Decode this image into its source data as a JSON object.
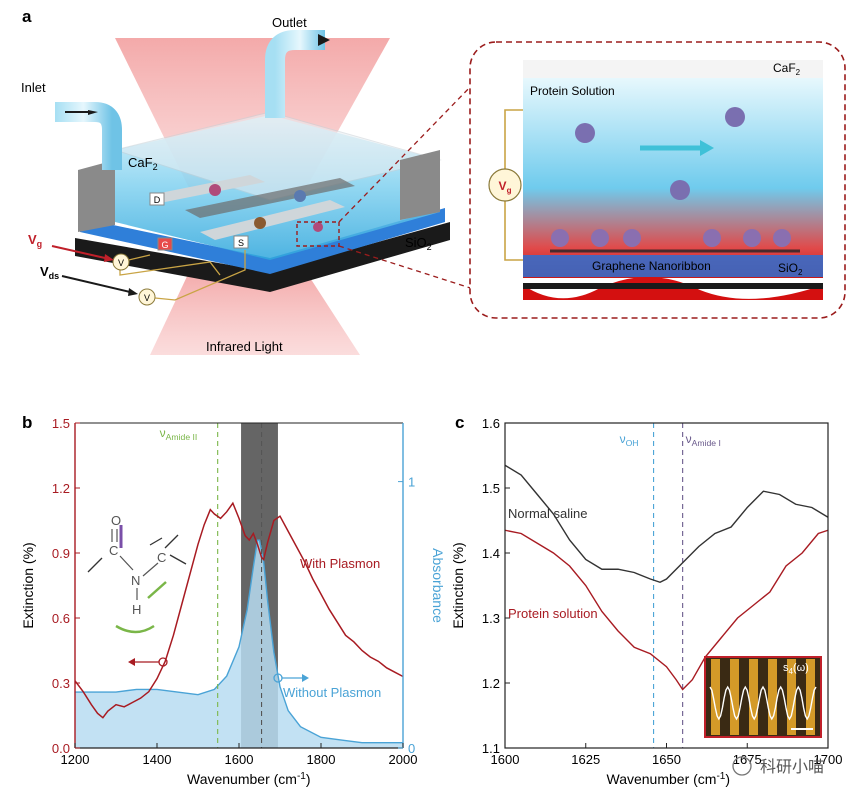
{
  "panel_a": {
    "letter": "a",
    "labels": {
      "outlet": "Outlet",
      "inlet": "Inlet",
      "caf2_left": "CaF",
      "caf2_left_sub": "2",
      "d": "D",
      "g": "G",
      "s": "S",
      "vg": "V",
      "vg_sub": "g",
      "vds": "V",
      "vds_sub": "ds",
      "v1": "V",
      "v2": "V",
      "sio2_left": "SiO",
      "sio2_left_sub": "2",
      "infrared": "Infrared Light"
    },
    "inset": {
      "caf2": "CaF",
      "caf2_sub": "2",
      "protein_solution": "Protein Solution",
      "vg": "V",
      "vg_sub": "g",
      "graphene": "Graphene Nanoribbon",
      "sio2": "SiO",
      "sio2_sub": "2"
    }
  },
  "chart_data": [
    {
      "panel": "b",
      "type": "line",
      "xlabel": "Wavenumber (cm",
      "xlabel_sup": "-1",
      "xlabel_end": ")",
      "ylabel": "Extinction (%)",
      "y2label": "Absorbance",
      "xlim": [
        1200,
        2000
      ],
      "ylim": [
        0,
        1.5
      ],
      "y2lim": [
        0,
        1.22
      ],
      "x_ticks": [
        "1200",
        "1400",
        "1600",
        "1800",
        "2000"
      ],
      "y_ticks": [
        "0.0",
        "0.3",
        "0.6",
        "0.9",
        "1.2",
        "1.5"
      ],
      "y2_ticks": [
        "0",
        "1"
      ],
      "vlines": [
        {
          "x": 1548,
          "label": "ν",
          "label_sub": "Amide II",
          "color": "#7ab648"
        },
        {
          "x": 1655,
          "label": "",
          "color": "#555555"
        }
      ],
      "band": [
        1605,
        1695
      ],
      "annotations": {
        "with_plasmon": "With Plasmon",
        "without_plasmon": "Without Plasmon"
      },
      "molecule": {
        "o": "O",
        "c1": "C",
        "n": "N",
        "c2": "C",
        "h": "H"
      },
      "series": [
        {
          "name": "With Plasmon",
          "color": "#a81b22",
          "axis": "left",
          "x": [
            1200,
            1220,
            1240,
            1255,
            1268,
            1280,
            1300,
            1320,
            1340,
            1360,
            1380,
            1400,
            1420,
            1440,
            1460,
            1480,
            1500,
            1515,
            1530,
            1540,
            1555,
            1570,
            1585,
            1600,
            1615,
            1625,
            1635,
            1645,
            1655,
            1660,
            1670,
            1685,
            1700,
            1720,
            1740,
            1760,
            1780,
            1800,
            1820,
            1840,
            1860,
            1880,
            1900,
            1920,
            1940,
            1960,
            1980,
            2000
          ],
          "y": [
            0.31,
            0.26,
            0.2,
            0.16,
            0.14,
            0.17,
            0.2,
            0.19,
            0.21,
            0.23,
            0.26,
            0.32,
            0.4,
            0.52,
            0.66,
            0.8,
            0.94,
            1.03,
            1.1,
            1.08,
            1.06,
            1.09,
            1.13,
            1.06,
            0.98,
            0.96,
            0.99,
            0.94,
            0.88,
            0.87,
            0.95,
            1.05,
            1.07,
            1.0,
            0.93,
            0.86,
            0.78,
            0.71,
            0.64,
            0.58,
            0.52,
            0.49,
            0.45,
            0.42,
            0.4,
            0.37,
            0.35,
            0.33
          ]
        },
        {
          "name": "Without Plasmon",
          "color": "#4aa3d6",
          "axis": "right",
          "x": [
            1200,
            1250,
            1300,
            1350,
            1400,
            1450,
            1500,
            1540,
            1570,
            1600,
            1620,
            1635,
            1645,
            1650,
            1660,
            1670,
            1685,
            1700,
            1720,
            1750,
            1800,
            1850,
            1900,
            1950,
            2000
          ],
          "y": [
            0.21,
            0.21,
            0.21,
            0.22,
            0.22,
            0.21,
            0.2,
            0.22,
            0.27,
            0.38,
            0.52,
            0.68,
            0.78,
            0.78,
            0.7,
            0.55,
            0.36,
            0.23,
            0.14,
            0.08,
            0.04,
            0.03,
            0.02,
            0.02,
            0.02
          ]
        }
      ]
    },
    {
      "panel": "c",
      "type": "line",
      "xlabel": "Wavenumber (cm",
      "xlabel_sup": "-1",
      "xlabel_end": ")",
      "ylabel": "Extinction (%)",
      "xlim": [
        1600,
        1700
      ],
      "ylim": [
        1.1,
        1.6
      ],
      "x_ticks": [
        "1600",
        "1625",
        "1650",
        "1675",
        "1700"
      ],
      "y_ticks": [
        "1.1",
        "1.2",
        "1.3",
        "1.4",
        "1.5",
        "1.6"
      ],
      "vlines": [
        {
          "x": 1646,
          "label": "ν",
          "label_sub": "OH",
          "color": "#4aa3d6"
        },
        {
          "x": 1655,
          "label": "ν",
          "label_sub": "Amide I",
          "color": "#6a5a8c"
        }
      ],
      "annotations": {
        "normal_saline": "Normal saline",
        "protein_solution": "Protein solution"
      },
      "inset_label": "s",
      "inset_label_sub": "4",
      "inset_label_end": "(ω)",
      "series": [
        {
          "name": "Normal saline",
          "color": "#333333",
          "x": [
            1600,
            1605,
            1610,
            1615,
            1620,
            1625,
            1630,
            1635,
            1640,
            1645,
            1648,
            1650,
            1655,
            1660,
            1665,
            1670,
            1675,
            1680,
            1685,
            1690,
            1695,
            1700
          ],
          "y": [
            1.535,
            1.52,
            1.49,
            1.46,
            1.42,
            1.39,
            1.375,
            1.375,
            1.37,
            1.36,
            1.355,
            1.36,
            1.385,
            1.41,
            1.43,
            1.44,
            1.47,
            1.495,
            1.49,
            1.475,
            1.47,
            1.455
          ]
        },
        {
          "name": "Protein solution",
          "color": "#a81b22",
          "x": [
            1600,
            1605,
            1610,
            1615,
            1620,
            1625,
            1630,
            1635,
            1640,
            1645,
            1650,
            1653,
            1655,
            1658,
            1662,
            1667,
            1672,
            1677,
            1682,
            1687,
            1692,
            1697,
            1700
          ],
          "y": [
            1.435,
            1.43,
            1.415,
            1.4,
            1.38,
            1.35,
            1.31,
            1.28,
            1.255,
            1.245,
            1.225,
            1.205,
            1.19,
            1.205,
            1.24,
            1.27,
            1.3,
            1.32,
            1.34,
            1.38,
            1.4,
            1.43,
            1.435
          ]
        }
      ]
    }
  ],
  "watermark": "科研小喵",
  "colors": {
    "red": "#a81b22",
    "blue": "#4aa3d6",
    "water": "#7fd0ef",
    "band": "#555555"
  }
}
